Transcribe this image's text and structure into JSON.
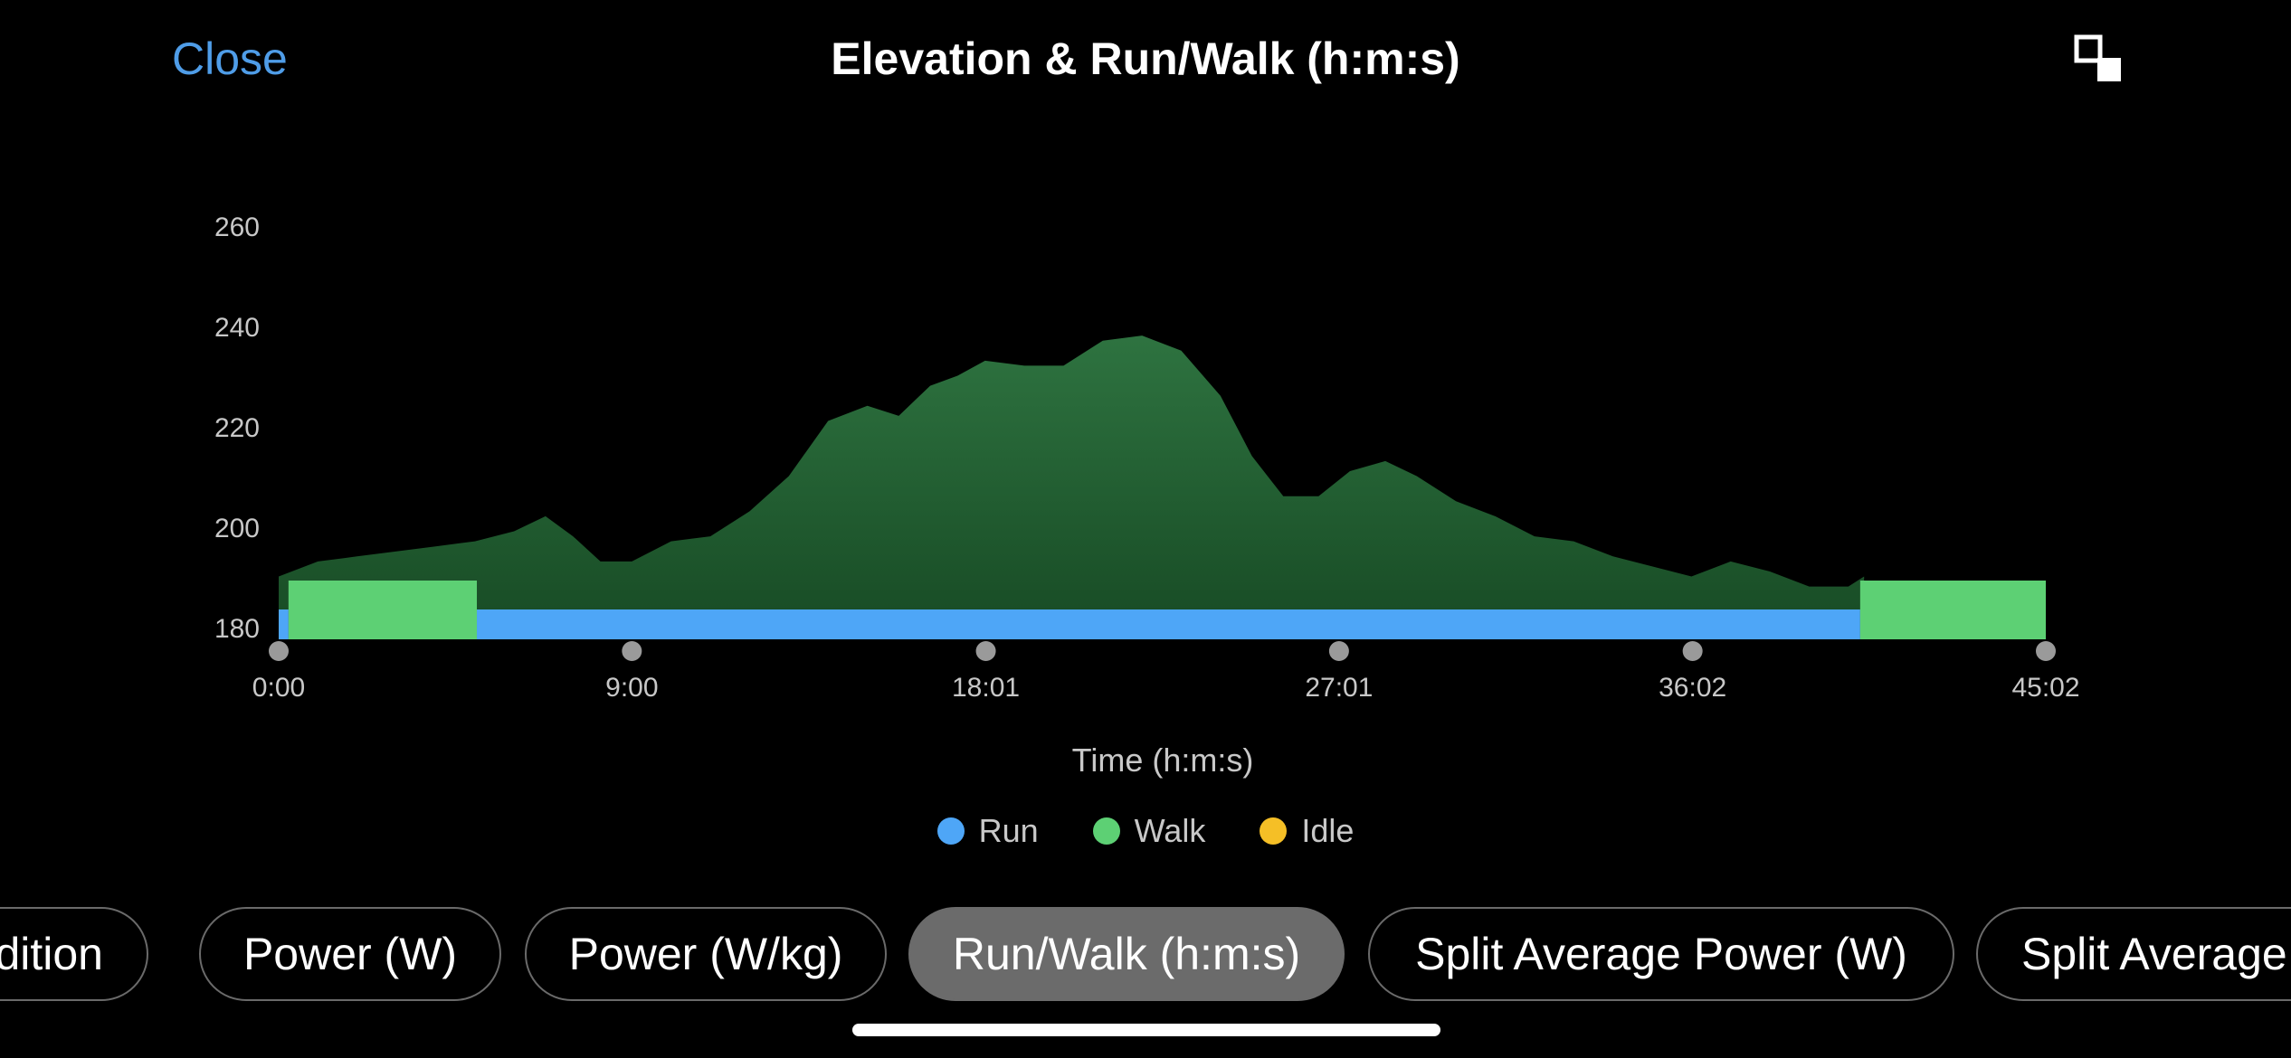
{
  "header": {
    "close_label": "Close",
    "title": "Elevation & Run/Walk (h:m:s)",
    "collapse_icon": "collapse-fullscreen-icon"
  },
  "chart_data": {
    "type": "area",
    "title": "Elevation & Run/Walk (h:m:s)",
    "xlabel": "Time (h:m:s)",
    "ylabel": "",
    "x_tick_labels": [
      "0:00",
      "9:00",
      "18:01",
      "27:01",
      "36:02",
      "45:02"
    ],
    "x_ticks_minutes": [
      0,
      9.0,
      18.02,
      27.02,
      36.03,
      45.03
    ],
    "xlim_minutes": [
      0,
      45.03
    ],
    "y_tick_labels": [
      "180",
      "200",
      "220",
      "240",
      "260"
    ],
    "y_ticks": [
      180,
      200,
      220,
      240,
      260
    ],
    "ylim": [
      180,
      260
    ],
    "grid": false,
    "legend_position": "bottom-center",
    "elevation_series": {
      "name": "Elevation",
      "color": "#2a6b37",
      "x_minutes": [
        0,
        1,
        2,
        3,
        4,
        5,
        6,
        6.8,
        7.5,
        8.2,
        9,
        10,
        11,
        12,
        13,
        14,
        15,
        15.8,
        16.6,
        17.3,
        18,
        19,
        20,
        21,
        22,
        23,
        24,
        24.8,
        25.6,
        26.5,
        27.3,
        28.2,
        29,
        30,
        31,
        32,
        33,
        34,
        35,
        36,
        37,
        38,
        39,
        40,
        40.4
      ],
      "values": [
        190,
        193,
        194,
        195,
        196,
        197,
        199,
        202,
        198,
        193,
        193,
        197,
        198,
        203,
        210,
        221,
        224,
        222,
        228,
        230,
        233,
        232,
        232,
        237,
        238,
        235,
        226,
        214,
        206,
        206,
        211,
        213,
        210,
        205,
        202,
        198,
        197,
        194,
        192,
        190,
        193,
        191,
        188,
        188,
        190
      ]
    },
    "run_walk_segments": [
      {
        "state": "Run",
        "start_minutes": 0,
        "end_minutes": 0.25
      },
      {
        "state": "Walk",
        "start_minutes": 0.25,
        "end_minutes": 5.05
      },
      {
        "state": "Run",
        "start_minutes": 5.05,
        "end_minutes": 40.3
      },
      {
        "state": "Walk",
        "start_minutes": 40.3,
        "end_minutes": 45.03
      }
    ],
    "legend": [
      {
        "name": "Run",
        "color": "#4ea6f7"
      },
      {
        "name": "Walk",
        "color": "#5dd074"
      },
      {
        "name": "Idle",
        "color": "#f5bf26"
      }
    ]
  },
  "tabs": [
    {
      "label": "Condition",
      "active": false
    },
    {
      "label": "Power (W)",
      "active": false
    },
    {
      "label": "Power (W/kg)",
      "active": false
    },
    {
      "label": "Run/Walk (h:m:s)",
      "active": true
    },
    {
      "label": "Split Average Power (W)",
      "active": false
    },
    {
      "label": "Split Average Power (W/kg)",
      "active": false
    }
  ]
}
